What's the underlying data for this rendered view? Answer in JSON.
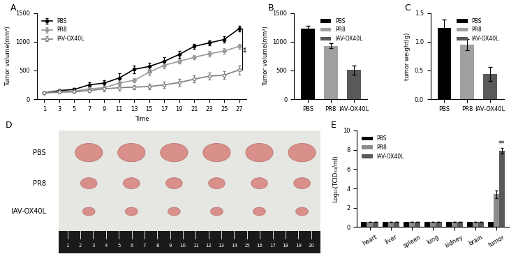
{
  "chart_data": [
    {
      "label": "A",
      "type": "line",
      "x_label": "Time",
      "y_label": "Tumor volume(mm³)",
      "x": [
        1,
        3,
        5,
        7,
        9,
        11,
        13,
        15,
        17,
        19,
        21,
        23,
        25,
        27
      ],
      "xlim": [
        0,
        28
      ],
      "xticks": [
        1,
        3,
        5,
        7,
        9,
        11,
        13,
        15,
        17,
        19,
        21,
        23,
        25,
        27
      ],
      "ylim": [
        0,
        1500
      ],
      "yticks": [
        0,
        500,
        1000,
        1500
      ],
      "legend": "upper left",
      "annotation": "**",
      "series": [
        {
          "name": "PBS",
          "color": "#000000",
          "marker": "circle",
          "values": [
            110,
            150,
            170,
            250,
            280,
            370,
            520,
            570,
            660,
            780,
            920,
            980,
            1040,
            1230
          ],
          "errors": [
            15,
            20,
            25,
            40,
            45,
            80,
            70,
            60,
            70,
            60,
            40,
            40,
            50,
            50
          ]
        },
        {
          "name": "PR8",
          "color": "#9a9a9a",
          "marker": "diamond",
          "values": [
            110,
            130,
            140,
            180,
            200,
            280,
            330,
            470,
            590,
            660,
            730,
            790,
            840,
            920
          ],
          "errors": [
            10,
            15,
            20,
            25,
            30,
            40,
            40,
            50,
            50,
            40,
            40,
            50,
            50,
            45
          ]
        },
        {
          "name": "IAV-OX40L",
          "color": "#7f7f7f",
          "marker": "open_circle",
          "values": [
            110,
            120,
            130,
            150,
            180,
            200,
            210,
            220,
            250,
            290,
            350,
            400,
            420,
            510
          ],
          "errors": [
            10,
            15,
            20,
            30,
            40,
            50,
            40,
            50,
            50,
            60,
            60,
            60,
            70,
            80
          ]
        }
      ]
    },
    {
      "label": "B",
      "type": "bar",
      "y_label": "Tumor volume(mm³)",
      "categories": [
        "PBS",
        "PR8",
        "IAV-OX40L"
      ],
      "values": [
        1230,
        930,
        510
      ],
      "errors": [
        50,
        45,
        80
      ],
      "colors": [
        "#000000",
        "#a0a0a0",
        "#595959"
      ],
      "ylim": [
        0,
        1500
      ],
      "yticks": [
        0,
        500,
        1000,
        1500
      ],
      "legend": "upper right"
    },
    {
      "label": "C",
      "type": "bar",
      "y_label": "tumor weight(g)",
      "categories": [
        "PBS",
        "PR8",
        "IAV-OX40L"
      ],
      "values": [
        1.24,
        0.95,
        0.44
      ],
      "errors": [
        0.15,
        0.1,
        0.12
      ],
      "colors": [
        "#000000",
        "#a0a0a0",
        "#595959"
      ],
      "ylim": [
        0,
        1.5
      ],
      "yticks": [
        {
          "value": 0,
          "label": "0.0"
        },
        {
          "value": 0.5,
          "label": "0.5"
        },
        {
          "value": 1.0,
          "label": "1.0"
        },
        {
          "value": 1.5,
          "label": "1.5"
        }
      ],
      "legend": "upper right"
    },
    {
      "label": "E",
      "type": "grouped_bar",
      "y_label": "Log₁₀(TCID₅₀/ml)",
      "categories": [
        "heart",
        "liver",
        "spleen",
        "lung",
        "kidney",
        "brain",
        "tumor"
      ],
      "ylim": [
        0,
        10
      ],
      "yticks": [
        0,
        2,
        4,
        6,
        8,
        10
      ],
      "legend": "upper left",
      "annotation": "**",
      "series": [
        {
          "name": "PBS",
          "color": "#000000",
          "values": [
            0.5,
            0.5,
            0.5,
            0.5,
            0.5,
            0.5,
            0.5
          ]
        },
        {
          "name": "PR8",
          "color": "#8c8c8c",
          "values": [
            0.5,
            0.5,
            0.5,
            0.5,
            0.5,
            0.5,
            3.4
          ],
          "errors": [
            0,
            0,
            0,
            0,
            0,
            0,
            0.4
          ]
        },
        {
          "name": "IAV-OX40L",
          "color": "#595959",
          "values": [
            0.5,
            0.5,
            0.5,
            0.5,
            0.5,
            0.5,
            7.9
          ],
          "errors": [
            0,
            0,
            0,
            0,
            0,
            0,
            0.3
          ]
        }
      ]
    }
  ],
  "panel_D": {
    "label": "D",
    "rows": [
      "PBS",
      "PR8",
      "IAV-OX40L"
    ],
    "ruler": [
      1,
      2,
      3,
      4,
      5,
      6,
      7,
      8,
      9,
      10,
      11,
      12,
      13,
      14,
      15,
      16,
      17,
      18,
      19,
      20
    ]
  }
}
